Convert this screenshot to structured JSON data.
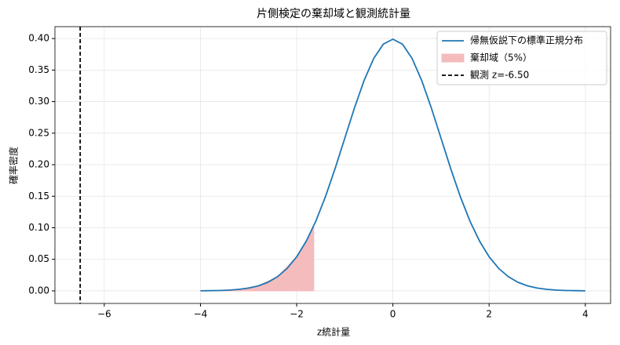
{
  "chart_data": {
    "type": "line",
    "title": "片側検定の棄却域と観測統計量",
    "xlabel": "z統計量",
    "ylabel": "確率密度",
    "xlim": [
      -7.025,
      4.525
    ],
    "ylim": [
      -0.01995,
      0.4188
    ],
    "xticks": [
      {
        "value": -6,
        "label": "−6"
      },
      {
        "value": -4,
        "label": "−4"
      },
      {
        "value": -2,
        "label": "−2"
      },
      0,
      2,
      4
    ],
    "yticks": [
      {
        "value": 0,
        "label": "0.00"
      },
      {
        "value": 0.05,
        "label": "0.05"
      },
      {
        "value": 0.1,
        "label": "0.10"
      },
      {
        "value": 0.15,
        "label": "0.15"
      },
      {
        "value": 0.2,
        "label": "0.20"
      },
      {
        "value": 0.25,
        "label": "0.25"
      },
      {
        "value": 0.3,
        "label": "0.30"
      },
      {
        "value": 0.35,
        "label": "0.35"
      },
      {
        "value": 0.4,
        "label": "0.40"
      }
    ],
    "grid": true,
    "legend": "upper right",
    "series": [
      {
        "name": "帰無仮説下の標準正規分布",
        "color": "#1f77b4",
        "x": [
          -4,
          -3.8,
          -3.6,
          -3.4,
          -3.2,
          -3,
          -2.8,
          -2.6,
          -2.4,
          -2.2,
          -2,
          -1.8,
          -1.6,
          -1.4,
          -1.2,
          -1,
          -0.8,
          -0.6,
          -0.4,
          -0.2,
          0,
          0.2,
          0.4,
          0.6,
          0.8,
          1,
          1.2,
          1.4,
          1.6,
          1.8,
          2,
          2.2,
          2.4,
          2.6,
          2.8,
          3,
          3.2,
          3.4,
          3.6,
          3.8,
          4
        ],
        "values": [
          0.0001,
          0.0003,
          0.0006,
          0.0012,
          0.0024,
          0.0044,
          0.0079,
          0.0136,
          0.0224,
          0.0355,
          0.054,
          0.079,
          0.1109,
          0.1497,
          0.1942,
          0.242,
          0.2897,
          0.3332,
          0.3683,
          0.391,
          0.3989,
          0.391,
          0.3683,
          0.3332,
          0.2897,
          0.242,
          0.1942,
          0.1497,
          0.1109,
          0.079,
          0.054,
          0.0355,
          0.0224,
          0.0136,
          0.0079,
          0.0044,
          0.0024,
          0.0012,
          0.0006,
          0.0003,
          0.0001
        ]
      },
      {
        "name": "棄却域（5%）",
        "color": "#f4bcbc",
        "fill": true,
        "x": [
          -4,
          -3.6,
          -3.2,
          -2.8,
          -2.4,
          -2,
          -1.8,
          -1.645
        ],
        "values": [
          0.0001,
          0.0006,
          0.0024,
          0.0079,
          0.0224,
          0.054,
          0.079,
          0.1031
        ]
      }
    ],
    "vline": {
      "name": "観測 z=-6.50",
      "x": -6.5,
      "color": "#000000"
    }
  }
}
